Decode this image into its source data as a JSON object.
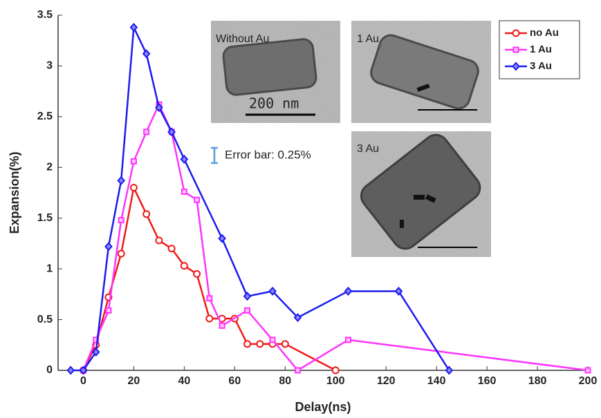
{
  "chart_data": {
    "type": "line",
    "x_label": "Delay(ns)",
    "y_label": "Expansion(%)",
    "xlim": [
      -10,
      200
    ],
    "xticks": [
      0,
      20,
      40,
      60,
      80,
      100,
      120,
      140,
      160,
      180,
      200
    ],
    "ylim": [
      0,
      3.5
    ],
    "yticks": [
      0,
      0.5,
      1,
      1.5,
      2,
      2.5,
      3,
      3.5
    ],
    "legend": "upper right",
    "series": [
      {
        "name": "no Au",
        "color": "#f01818",
        "marker": "circle",
        "x": [
          0,
          5,
          10,
          15,
          20,
          25,
          30,
          35,
          40,
          45,
          50,
          55,
          60,
          65,
          70,
          75,
          80,
          100
        ],
        "values": [
          0,
          0.25,
          0.72,
          1.15,
          1.8,
          1.54,
          1.28,
          1.2,
          1.03,
          0.95,
          0.51,
          0.51,
          0.51,
          0.26,
          0.26,
          0.26,
          0.26,
          0
        ]
      },
      {
        "name": "1 Au",
        "color": "#ff33ff",
        "marker": "square",
        "x": [
          0,
          5,
          10,
          15,
          20,
          25,
          30,
          35,
          40,
          45,
          50,
          55,
          65,
          75,
          85,
          105,
          200
        ],
        "values": [
          0,
          0.3,
          0.59,
          1.48,
          2.06,
          2.35,
          2.62,
          2.35,
          1.76,
          1.68,
          0.71,
          0.44,
          0.59,
          0.3,
          0,
          0.3,
          0
        ]
      },
      {
        "name": "3 Au",
        "color": "#1a1aee",
        "marker": "diamond",
        "x": [
          -5,
          0,
          5,
          10,
          15,
          20,
          25,
          30,
          35,
          40,
          55,
          65,
          75,
          85,
          105,
          125,
          145
        ],
        "values": [
          0,
          0,
          0.18,
          1.22,
          1.87,
          3.38,
          3.12,
          2.59,
          2.35,
          2.08,
          1.3,
          0.73,
          0.78,
          0.52,
          0.78,
          0.78,
          0
        ]
      }
    ],
    "insets": [
      {
        "label": "Without Au",
        "color": "#e01818"
      },
      {
        "label": "1 Au",
        "color": "#ff55ff"
      },
      {
        "label": "3 Au",
        "color": "#1a1aee"
      }
    ],
    "scale_bar_label": "200 nm",
    "annotation": "Error bar: 0.25%"
  }
}
